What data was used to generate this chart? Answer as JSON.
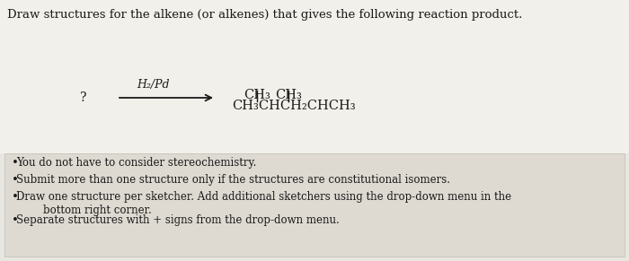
{
  "title_text": "Draw structures for the alkene (or alkenes) that gives the following reaction product.",
  "title_fontsize": 9.5,
  "background_color": "#e8e6e0",
  "upper_bg_color": "#f2f0ea",
  "lower_bg_color": "#dedad2",
  "question_mark": "?",
  "reagent": "H₂/Pd",
  "ch3_top_left": "CH₃",
  "ch3_top_right": "CH₃",
  "product_line": "CH₃CHCH₂CHCH₃",
  "bullet_points": [
    "You do not have to consider stereochemistry.",
    "Submit more than one structure only if the structures are constitutional isomers.",
    "Draw one structure per sketcher. Add additional sketchers using the drop-down menu in the\n        bottom right corner.",
    "Separate structures with + signs from the drop-down menu."
  ],
  "bullet_fontsize": 8.5,
  "text_color": "#1a1a1a",
  "arrow_color": "#1a1a1a"
}
